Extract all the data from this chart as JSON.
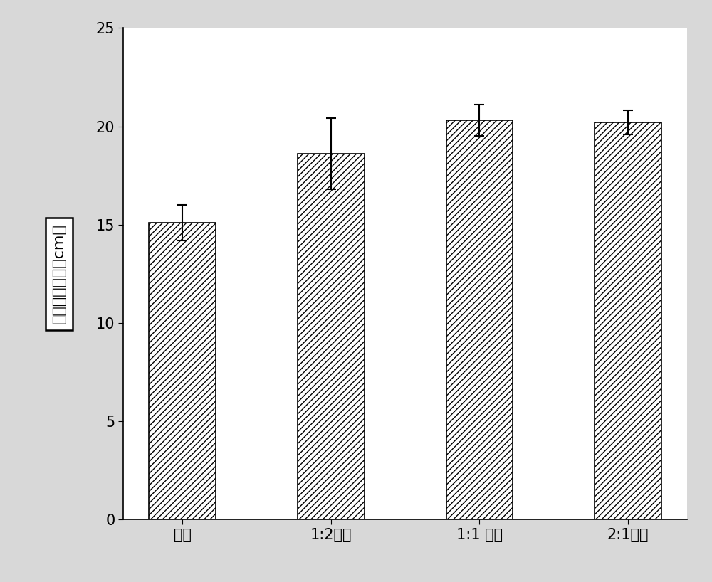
{
  "categories": [
    "对照",
    "1:2稀释",
    "1:1 稀释",
    "2:1稀释"
  ],
  "values": [
    15.1,
    18.6,
    20.3,
    20.2
  ],
  "errors": [
    0.9,
    1.8,
    0.8,
    0.6
  ],
  "ylabel": "幼芽平均长度（cm）",
  "ylim": [
    0,
    25
  ],
  "yticks": [
    0,
    5,
    10,
    15,
    20,
    25
  ],
  "bar_color": "white",
  "hatch": "////",
  "edgecolor": "black",
  "figsize": [
    10.0,
    8.18
  ],
  "dpi": 100,
  "bar_width": 0.45,
  "font_size_tick": 15,
  "font_size_label": 16,
  "background_color": "#d8d8d8"
}
